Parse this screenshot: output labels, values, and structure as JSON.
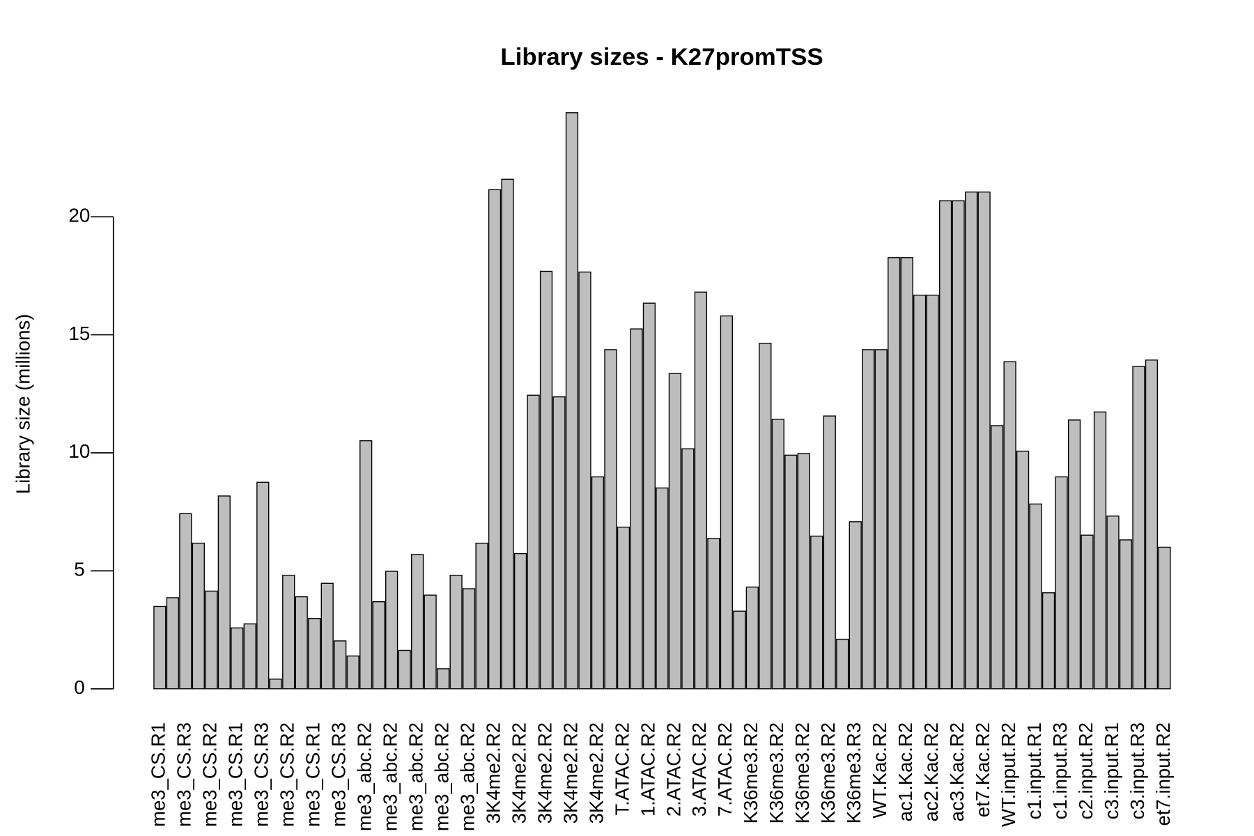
{
  "chart_data": {
    "type": "bar",
    "title": "Library sizes - K27promTSS",
    "y_label": "Library size (millions)",
    "categories": [
      "me3_CS.R1",
      null,
      "me3_CS.R3",
      null,
      "me3_CS.R2",
      null,
      "me3_CS.R1",
      null,
      "me3_CS.R3",
      null,
      "me3_CS.R2",
      null,
      "me3_CS.R1",
      null,
      "me3_CS.R3",
      null,
      "me3_abc.R2",
      null,
      "me3_abc.R2",
      null,
      "me3_abc.R2",
      null,
      "me3_abc.R2",
      null,
      "me3_abc.R2",
      null,
      "3K4me2.R2",
      null,
      "3K4me2.R2",
      null,
      "3K4me2.R2",
      null,
      "3K4me2.R2",
      null,
      "3K4me2.R2",
      null,
      "T.ATAC.R2",
      null,
      "1.ATAC.R2",
      null,
      "2.ATAC.R2",
      null,
      "3.ATAC.R2",
      null,
      "7.ATAC.R2",
      null,
      "K36me3.R2",
      null,
      "K36me3.R2",
      null,
      "K36me3.R2",
      null,
      "K36me3.R2",
      null,
      "K36me3.R3",
      null,
      "WT.Kac.R2",
      null,
      "ac1.Kac.R2",
      null,
      "ac2.Kac.R2",
      null,
      "ac3.Kac.R2",
      null,
      "et7.Kac.R2",
      null,
      "WT.input.R2",
      null,
      "c1.input.R1",
      null,
      "c1.input.R3",
      null,
      "c2.input.R2",
      null,
      "c3.input.R1",
      null,
      "c3.input.R3",
      null,
      "et7.input.R2"
    ],
    "values": [
      3.49,
      3.86,
      7.42,
      6.17,
      4.14,
      8.17,
      2.58,
      2.75,
      8.75,
      0.41,
      4.81,
      3.9,
      2.98,
      4.47,
      2.03,
      1.39,
      10.51,
      3.69,
      4.98,
      1.63,
      5.69,
      3.97,
      0.85,
      4.81,
      4.24,
      6.17,
      21.15,
      21.59,
      5.73,
      12.44,
      17.69,
      12.37,
      24.41,
      17.66,
      8.98,
      14.37,
      6.85,
      15.25,
      16.34,
      8.51,
      13.36,
      10.17,
      16.81,
      6.37,
      15.8,
      3.29,
      4.31,
      14.64,
      11.42,
      9.9,
      9.97,
      6.47,
      11.56,
      2.1,
      7.08,
      14.37,
      14.37,
      18.27,
      18.27,
      16.68,
      16.68,
      20.68,
      20.68,
      21.05,
      21.05,
      11.15,
      13.86,
      10.07,
      7.83,
      4.07,
      8.98,
      11.39,
      6.51,
      11.73,
      7.32,
      6.31,
      13.66,
      13.93,
      6.0
    ],
    "color": "#bebebe",
    "ylim": [
      0,
      25
    ],
    "yticks": [
      0,
      5,
      10,
      15,
      20
    ]
  }
}
